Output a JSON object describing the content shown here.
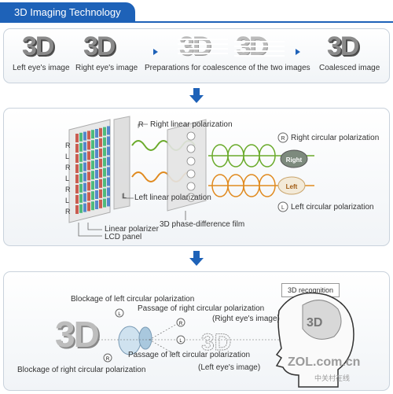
{
  "header": {
    "title": "3D Imaging Technology"
  },
  "step1": {
    "big_text": "3D",
    "left_eye": "Left eye's image",
    "right_eye": "Right eye's image",
    "preparations": "Preparations for coalescence of the two images",
    "coalesced": "Coalesced image"
  },
  "step2": {
    "rows": [
      "R",
      "L",
      "R",
      "L",
      "R",
      "L",
      "R"
    ],
    "r_letter": "R",
    "l_letter": "L",
    "right_linear": "Right linear polarization",
    "left_linear": "Left linear polarization",
    "right_circular": "Right circular polarization",
    "left_circular": "Left circular polarization",
    "right_ball": "Right",
    "left_ball": "Left",
    "linear_polarizer": "Linear polarizer",
    "lcd_panel": "LCD panel",
    "film": "3D phase-difference film"
  },
  "step3": {
    "recognition": "3D recognition",
    "blockage_left": "Blockage of left circular polarization",
    "passage_right": "Passage of right circular polarization",
    "right_eye_image": "(Right eye's image)",
    "passage_left": "Passage of left circular polarization",
    "left_eye_image": "(Left eye's image)",
    "blockage_right": "Blockage of right circular polarization",
    "big_text": "3D",
    "watermark": "ZOL.com.cn",
    "watermark_sub": "中关村在线"
  },
  "colors": {
    "accent": "#1e62b8",
    "green": "#6aaa2a",
    "orange": "#e08a1e"
  }
}
